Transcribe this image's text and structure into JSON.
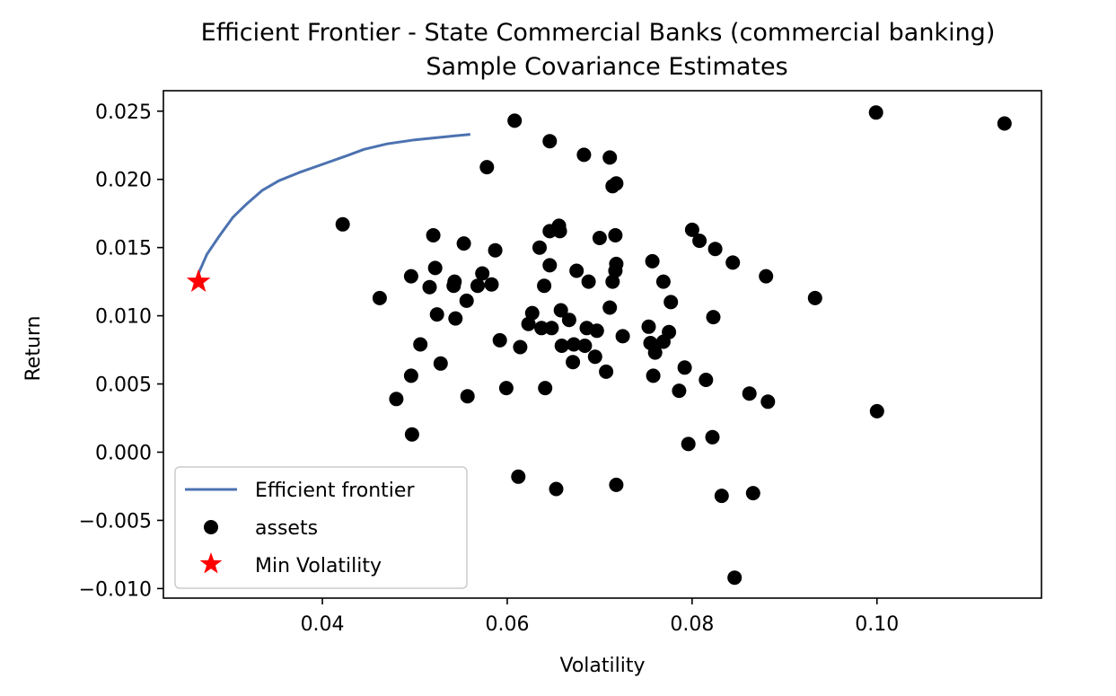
{
  "chart_data": {
    "type": "scatter",
    "title": "Efficient Frontier - State Commercial Banks (commercial banking)",
    "subtitle": "Sample Covariance Estimates",
    "xlabel": "Volatility",
    "ylabel": "Return",
    "xlim": [
      0.0228,
      0.1178
    ],
    "ylim": [
      -0.0107,
      0.0265
    ],
    "xticks": [
      0.04,
      0.06,
      0.08,
      0.1
    ],
    "xtick_labels": [
      "0.04",
      "0.06",
      "0.08",
      "0.10"
    ],
    "yticks": [
      -0.01,
      -0.005,
      0.0,
      0.005,
      0.01,
      0.015,
      0.02,
      0.025
    ],
    "ytick_labels": [
      "−0.010",
      "−0.005",
      "0.000",
      "0.005",
      "0.010",
      "0.015",
      "0.020",
      "0.025"
    ],
    "grid": false,
    "legend_position": "lower-left",
    "colors": {
      "frontier": "#4c72b0",
      "assets": "#000000",
      "min_vol": "#ff0000"
    },
    "series": [
      {
        "name": "Efficient frontier",
        "kind": "line",
        "x": [
          0.0266,
          0.0275,
          0.0288,
          0.0303,
          0.0318,
          0.0335,
          0.0353,
          0.0375,
          0.04,
          0.0425,
          0.0445,
          0.047,
          0.05,
          0.053,
          0.056
        ],
        "y": [
          0.0131,
          0.0145,
          0.0158,
          0.0172,
          0.0182,
          0.0192,
          0.0199,
          0.0205,
          0.0211,
          0.0217,
          0.0222,
          0.0226,
          0.0229,
          0.0231,
          0.0233
        ]
      },
      {
        "name": "assets",
        "kind": "scatter",
        "x": [
          0.0608,
          0.0646,
          0.0683,
          0.0711,
          0.0718,
          0.0714,
          0.0578,
          0.0999,
          0.1138,
          0.0422,
          0.052,
          0.0553,
          0.0587,
          0.0646,
          0.0656,
          0.0657,
          0.07,
          0.0717,
          0.0635,
          0.0718,
          0.08,
          0.0808,
          0.0825,
          0.0844,
          0.088,
          0.0933,
          0.0757,
          0.0769,
          0.0777,
          0.0462,
          0.0496,
          0.0516,
          0.0522,
          0.0542,
          0.0543,
          0.0556,
          0.0568,
          0.0573,
          0.0583,
          0.0646,
          0.064,
          0.0675,
          0.0688,
          0.0714,
          0.0717,
          0.0524,
          0.0544,
          0.0627,
          0.0623,
          0.0637,
          0.0648,
          0.0658,
          0.0667,
          0.0686,
          0.0697,
          0.0711,
          0.0725,
          0.0592,
          0.0614,
          0.0659,
          0.0672,
          0.0684,
          0.0753,
          0.0755,
          0.0769,
          0.0775,
          0.0823,
          0.076,
          0.0506,
          0.0496,
          0.0528,
          0.0671,
          0.0695,
          0.0707,
          0.0758,
          0.0792,
          0.0815,
          0.048,
          0.0557,
          0.0599,
          0.0641,
          0.0786,
          0.0862,
          0.0882,
          0.0497,
          0.0796,
          0.0822,
          0.1,
          0.0612,
          0.0653,
          0.0718,
          0.0832,
          0.0866,
          0.0846
        ],
        "y": [
          0.0243,
          0.0228,
          0.0218,
          0.0216,
          0.0197,
          0.0195,
          0.0209,
          0.0249,
          0.0241,
          0.0167,
          0.0159,
          0.0153,
          0.0148,
          0.0162,
          0.0166,
          0.0162,
          0.0157,
          0.0159,
          0.015,
          0.0138,
          0.0163,
          0.0155,
          0.0149,
          0.0139,
          0.0129,
          0.0113,
          0.014,
          0.0125,
          0.011,
          0.0113,
          0.0129,
          0.0121,
          0.0135,
          0.0122,
          0.0125,
          0.0111,
          0.0122,
          0.0131,
          0.0123,
          0.0137,
          0.0122,
          0.0133,
          0.0125,
          0.0125,
          0.0133,
          0.0101,
          0.0098,
          0.0102,
          0.0094,
          0.0091,
          0.0091,
          0.0104,
          0.0097,
          0.0091,
          0.0089,
          0.0106,
          0.0085,
          0.0082,
          0.0077,
          0.0078,
          0.0079,
          0.0078,
          0.0092,
          0.008,
          0.0081,
          0.0088,
          0.0099,
          0.0073,
          0.0079,
          0.0056,
          0.0065,
          0.0066,
          0.007,
          0.0059,
          0.0056,
          0.0062,
          0.0053,
          0.0039,
          0.0041,
          0.0047,
          0.0047,
          0.0045,
          0.0043,
          0.0037,
          0.0013,
          0.0006,
          0.0011,
          0.003,
          -0.0018,
          -0.0027,
          -0.0024,
          -0.0032,
          -0.003,
          -0.0092
        ]
      },
      {
        "name": "Min Volatility",
        "kind": "marker",
        "x": [
          0.0266
        ],
        "y": [
          0.0125
        ]
      }
    ]
  }
}
